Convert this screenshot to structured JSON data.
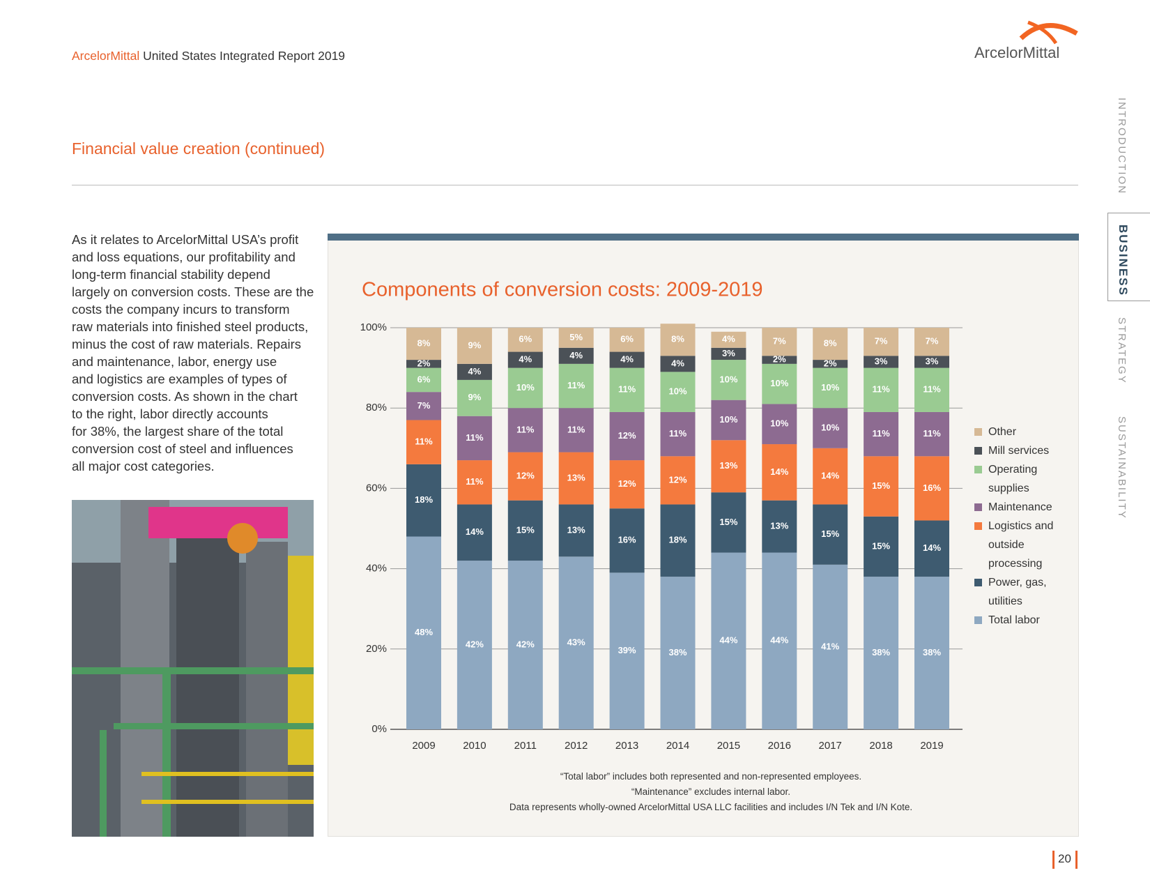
{
  "header": {
    "brand": "ArcelorMittal",
    "report": "United States Integrated Report 2019",
    "logo": "ArcelorMittal"
  },
  "nav": [
    "INTRODUCTION",
    "BUSINESS",
    "STRATEGY",
    "SUSTAINABILITY"
  ],
  "section_title": "Financial value creation (continued)",
  "body": [
    "As it relates to ArcelorMittal USA’s profit",
    "and loss equations, our profitability and",
    "long-term financial stability depend",
    "largely on conversion costs. These are the",
    "costs the company incurs to transform",
    "raw materials into finished steel products,",
    "minus the cost of raw materials. Repairs",
    "and maintenance, labor, energy use",
    "and logistics are examples of types of",
    "conversion costs. As shown in the chart",
    "to the right, labor directly accounts",
    "for 38%, the largest share of the total",
    "conversion cost of steel and influences",
    "all major cost categories."
  ],
  "chart_data": {
    "type": "stacked_bar",
    "title": "Components of conversion costs: 2009-2019",
    "categories": [
      "2009",
      "2010",
      "2011",
      "2012",
      "2013",
      "2014",
      "2015",
      "2016",
      "2017",
      "2018",
      "2019"
    ],
    "series": [
      {
        "name": "Other",
        "color": "#d6b995",
        "values": [
          8,
          9,
          6,
          5,
          6,
          8,
          4,
          7,
          8,
          7,
          7
        ],
        "value_labels": [
          "8%",
          "9%",
          "6%",
          "5%",
          "6%",
          "8%",
          "4%",
          "7%",
          "8%",
          "7%",
          "7%"
        ]
      },
      {
        "name": "Mill services",
        "color": "#4b5157",
        "values": [
          2,
          4,
          4,
          4,
          4,
          4,
          3,
          2,
          2,
          3,
          3
        ],
        "value_labels": [
          "2%",
          "4%",
          "4%",
          "4%",
          "4%",
          "4%",
          "3%",
          "2%",
          "2%",
          "3%",
          "3%"
        ]
      },
      {
        "name": "Operating supplies",
        "color": "#9acb92",
        "values": [
          6,
          9,
          10,
          11,
          11,
          10,
          10,
          10,
          10,
          11,
          11
        ],
        "value_labels": [
          "6%",
          "9%",
          "10%",
          "11%",
          "11%",
          "10%",
          "10%",
          "10%",
          "10%",
          "11%",
          "11%"
        ]
      },
      {
        "name": "Maintenance",
        "color": "#8d6b91",
        "values": [
          7,
          11,
          11,
          11,
          12,
          11,
          10,
          10,
          10,
          11,
          11
        ],
        "value_labels": [
          "7%",
          "11%",
          "11%",
          "11%",
          "12%",
          "11%",
          "10%",
          "10%",
          "10%",
          "11%",
          "11%"
        ]
      },
      {
        "name": "Logistics and outside processing",
        "color": "#f47a3e",
        "values": [
          11,
          11,
          12,
          13,
          12,
          12,
          13,
          14,
          14,
          15,
          16
        ],
        "value_labels": [
          "11%",
          "11%",
          "12%",
          "13%",
          "12%",
          "12%",
          "13%",
          "14%",
          "14%",
          "15%",
          "16%"
        ]
      },
      {
        "name": "Power, gas, utilities",
        "color": "#3e5b70",
        "values": [
          18,
          14,
          15,
          13,
          16,
          18,
          15,
          13,
          15,
          15,
          14
        ],
        "value_labels": [
          "18%",
          "14%",
          "15%",
          "13%",
          "16%",
          "18%",
          "15%",
          "13%",
          "15%",
          "15%",
          "14%"
        ]
      },
      {
        "name": "Total labor",
        "color": "#8ea8c1",
        "values": [
          48,
          42,
          42,
          43,
          39,
          38,
          44,
          44,
          41,
          38,
          38
        ],
        "value_labels": [
          "48%",
          "42%",
          "42%",
          "43%",
          "39%",
          "38%",
          "44%",
          "44%",
          "41%",
          "38%",
          "38%"
        ]
      }
    ],
    "ylim": [
      0,
      100
    ],
    "yticks": [
      {
        "value": 0,
        "label": "0%"
      },
      {
        "value": 20,
        "label": "20%"
      },
      {
        "value": 40,
        "label": "40%"
      },
      {
        "value": 60,
        "label": "60%"
      },
      {
        "value": 80,
        "label": "80%"
      },
      {
        "value": 100,
        "label": "100%"
      }
    ],
    "grid": true,
    "legend": "right",
    "notes": [
      "“Total labor” includes both represented and non-represented employees.",
      "“Maintenance” excludes internal labor.",
      "Data represents wholly-owned ArcelorMittal USA LLC facilities and includes I/N Tek and I/N Kote."
    ]
  },
  "page_number": "20"
}
